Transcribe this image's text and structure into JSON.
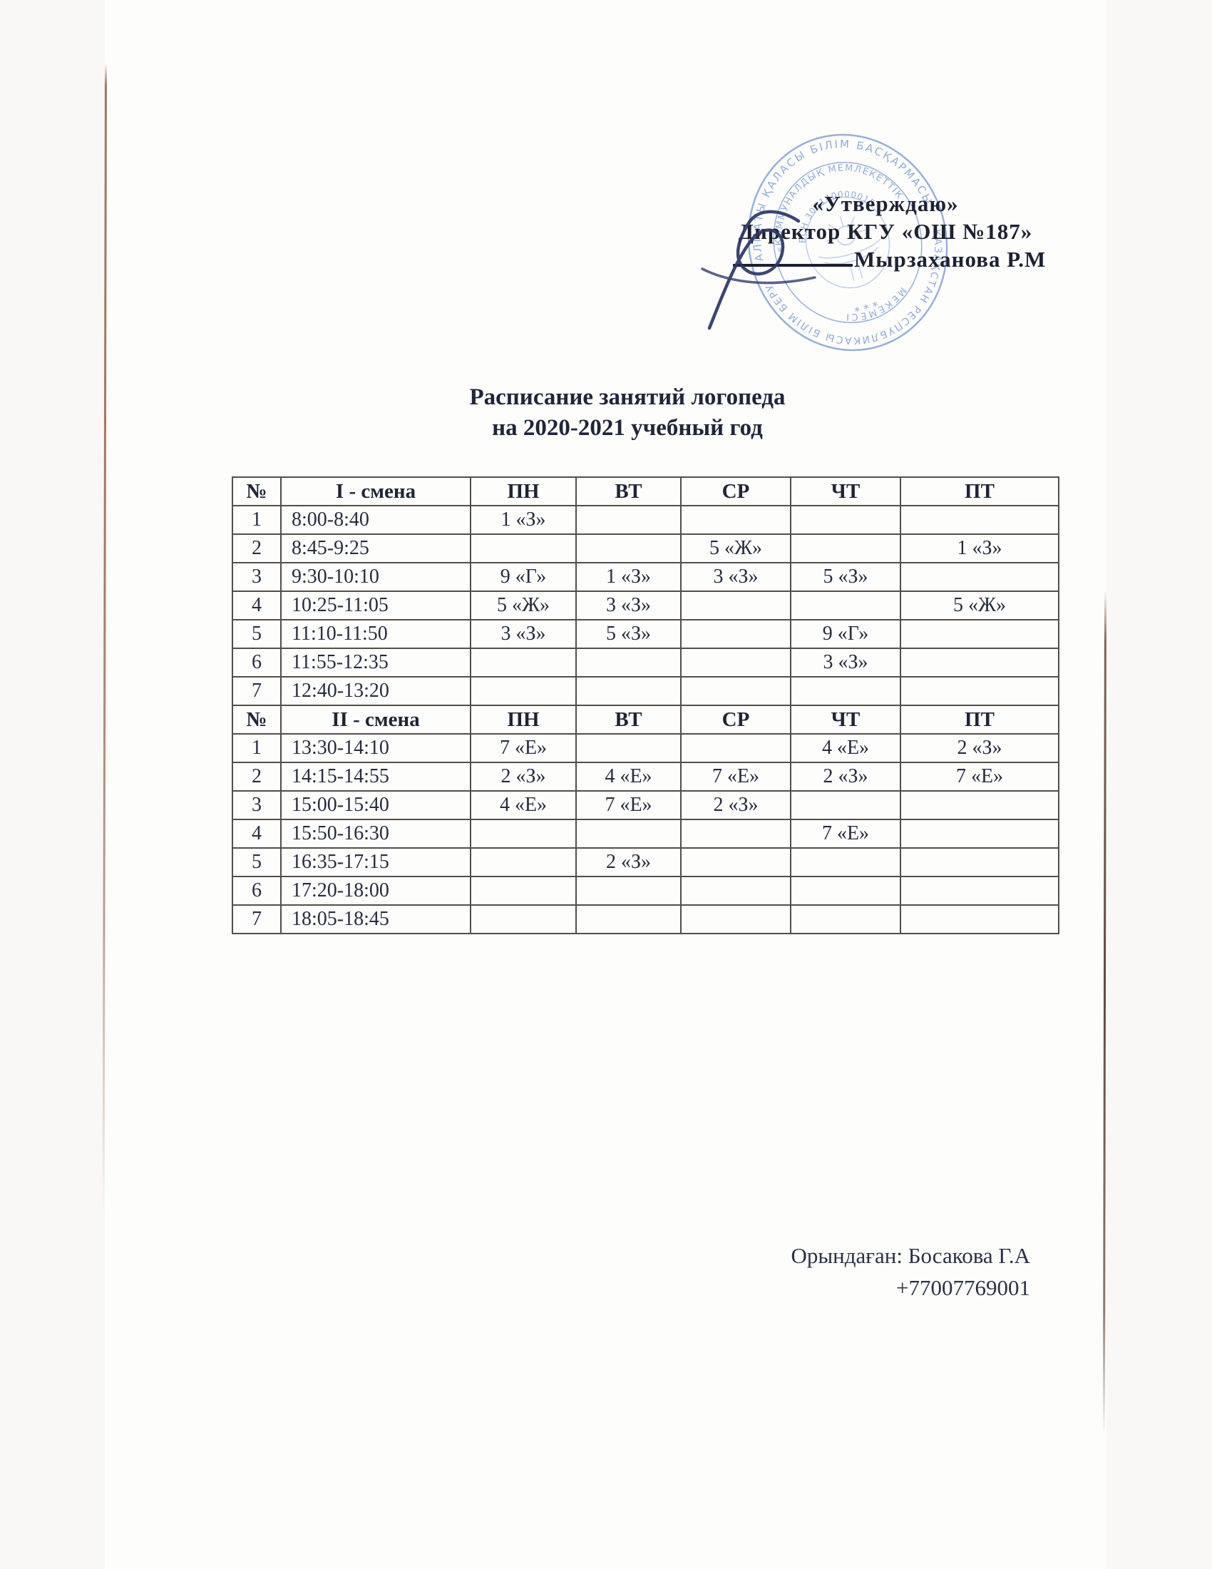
{
  "approval": {
    "line1": "«Утверждаю»",
    "line2": "Директор КГУ «ОШ №187»",
    "signer": "Мырзаханова Р.М"
  },
  "stamp": {
    "outer_top": "АЛМАТЫ ҚАЛАСЫ БІЛІМ БАСҚАРМАСЫ",
    "outer_bottom": "ҚАЗАҚСТАН РЕСПУБЛИКАСЫ БІЛІМ БЕРУ",
    "inner_top": "«КОММУНАЛДЫҚ МЕМЛЕКЕТТІК",
    "inner_bottom": "МЕКЕМЕСІ",
    "bsn": "БСН 300140000015",
    "stars": "* * *",
    "color": "#7698cf"
  },
  "title": {
    "line1": "Расписание занятий логопеда",
    "line2": "на 2020-2021 учебный год"
  },
  "schedule": {
    "sections": [
      {
        "header": [
          "№",
          "I - смена",
          "ПН",
          "ВТ",
          "СР",
          "ЧТ",
          "ПТ"
        ],
        "rows": [
          [
            "1",
            "8:00-8:40",
            "1 «З»",
            "",
            "",
            "",
            ""
          ],
          [
            "2",
            "8:45-9:25",
            "",
            "",
            "5 «Ж»",
            "",
            "1 «З»"
          ],
          [
            "3",
            "9:30-10:10",
            "9 «Г»",
            "1 «З»",
            "3 «З»",
            "5 «З»",
            ""
          ],
          [
            "4",
            "10:25-11:05",
            "5 «Ж»",
            "3 «З»",
            "",
            "",
            "5 «Ж»"
          ],
          [
            "5",
            "11:10-11:50",
            "3 «З»",
            "5 «З»",
            "",
            "9 «Г»",
            ""
          ],
          [
            "6",
            "11:55-12:35",
            "",
            "",
            "",
            "3 «З»",
            ""
          ],
          [
            "7",
            "12:40-13:20",
            "",
            "",
            "",
            "",
            ""
          ]
        ]
      },
      {
        "header": [
          "№",
          "II - смена",
          "ПН",
          "ВТ",
          "СР",
          "ЧТ",
          "ПТ"
        ],
        "rows": [
          [
            "1",
            "13:30-14:10",
            "7 «Е»",
            "",
            "",
            "4 «Е»",
            "2 «З»"
          ],
          [
            "2",
            "14:15-14:55",
            "2 «З»",
            "4 «Е»",
            "7 «Е»",
            "2 «З»",
            "7 «Е»"
          ],
          [
            "3",
            "15:00-15:40",
            "4 «Е»",
            "7 «Е»",
            "2 «З»",
            "",
            ""
          ],
          [
            "4",
            "15:50-16:30",
            "",
            "",
            "",
            "7 «Е»",
            ""
          ],
          [
            "5",
            "16:35-17:15",
            "",
            "2 «З»",
            "",
            "",
            ""
          ],
          [
            "6",
            "17:20-18:00",
            "",
            "",
            "",
            "",
            ""
          ],
          [
            "7",
            "18:05-18:45",
            "",
            "",
            "",
            "",
            ""
          ]
        ]
      }
    ]
  },
  "footer": {
    "executor": "Орындаған: Босакова Г.А",
    "phone": "+77007769001"
  },
  "colors": {
    "ink": "#262c3e",
    "table_border": "#524f48",
    "stamp_blue": "#7698cf",
    "paper_edge": "#8a5f49",
    "signature_ink": "#2c3768"
  }
}
